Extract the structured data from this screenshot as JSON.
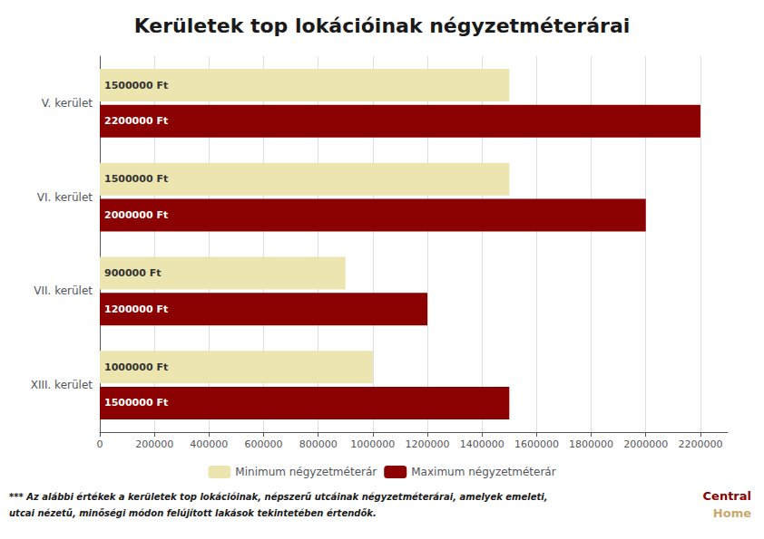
{
  "chart_data": {
    "type": "bar",
    "orientation": "horizontal",
    "title": "Kerületek top lokációinak négyzetméterárai",
    "categories": [
      "V. kerület",
      "VI. kerület",
      "VII. kerület",
      "XIII. kerület"
    ],
    "series": [
      {
        "name": "Minimum négyzetméterár",
        "color": "#EDE5B0",
        "values": [
          1500000,
          1500000,
          900000,
          1000000
        ],
        "value_labels": [
          "1500000 Ft",
          "1500000 Ft",
          "900000 Ft",
          "1000000 Ft"
        ]
      },
      {
        "name": "Maximum négyzetméterár",
        "color": "#8B0000",
        "values": [
          2200000,
          2000000,
          1200000,
          1500000
        ],
        "value_labels": [
          "2200000 Ft",
          "2000000 Ft",
          "1200000 Ft",
          "1500000 Ft"
        ]
      }
    ],
    "xlim": [
      0,
      2300000
    ],
    "xticks": [
      0,
      200000,
      400000,
      600000,
      800000,
      1000000,
      1200000,
      1400000,
      1600000,
      1800000,
      2000000,
      2200000
    ],
    "grid": true,
    "legend": "bottom",
    "data_labels": true,
    "annotations": [
      "*** Az alábbi értékek a kerületek top lokációinak, népszerű utcáinak négyzetméterárai, amelyek emeleti,",
      "utcai nézetű, minőségi módon felújított lakások tekintetében értendők.",
      "Central",
      "Home"
    ]
  }
}
